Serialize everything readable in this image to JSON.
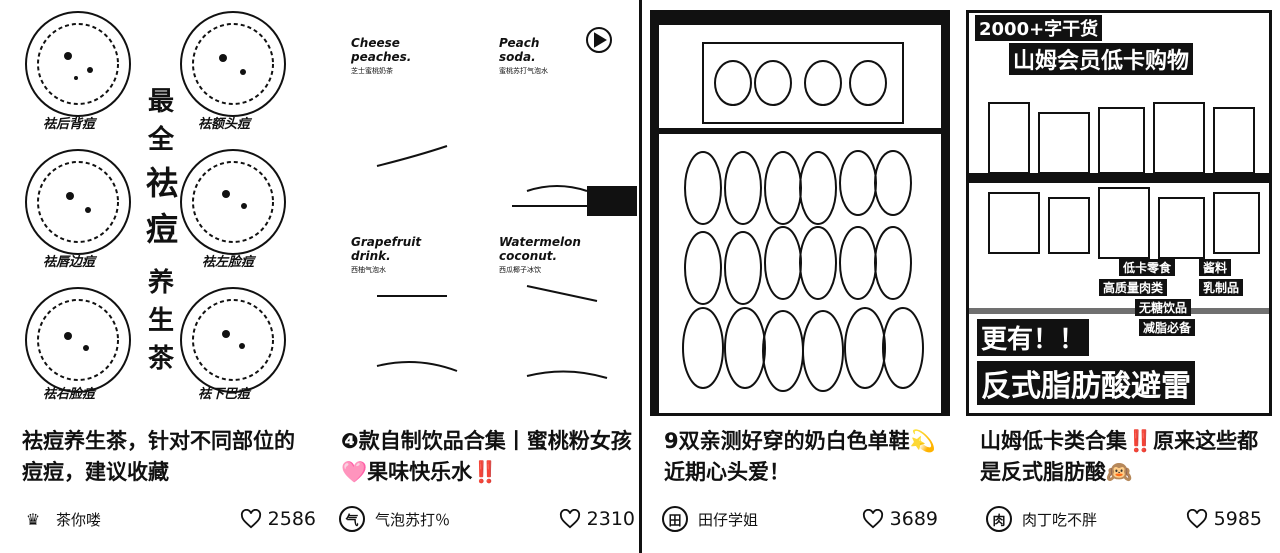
{
  "cards": [
    {
      "title": "祛痘养生茶，针对不同部位的痘痘，建议收藏",
      "author": "茶你喽",
      "likes": "2586",
      "image": {
        "vertical_text": [
          "最",
          "全",
          "祛",
          "痘",
          "养",
          "生",
          "茶"
        ],
        "labels": [
          "祛后背痘",
          "祛额头痘",
          "祛唇边痘",
          "祛左脸痘",
          "祛右脸痘",
          "祛下巴痘"
        ]
      }
    },
    {
      "title": "❹款自制饮品合集丨蜜桃粉女孩🩷果味快乐水‼️",
      "author": "气泡苏打％",
      "likes": "2310",
      "image": {
        "drinks": [
          {
            "name": "Cheese\npeaches.",
            "sub": "芝士蜜桃奶茶"
          },
          {
            "name": "Peach\nsoda.",
            "sub": "蜜桃苏打气泡水"
          },
          {
            "name": "Grapefruit\ndrink.",
            "sub": "西柚气泡水"
          },
          {
            "name": "Watermelon\ncoconut.",
            "sub": "西瓜椰子冰饮"
          }
        ]
      }
    },
    {
      "title": "9双亲测好穿的奶白色单鞋💫近期心头爱！",
      "author": "田仔学姐",
      "likes": "3689",
      "image": {}
    },
    {
      "title": "山姆低卡类合集‼️原来这些都是反式脂肪酸🙉",
      "author": "肉丁吃不胖",
      "likes": "5985",
      "image": {
        "top_banner": "2000+字干货",
        "headline": "山姆会员低卡购物",
        "tags": [
          "低卡零食",
          "酱料",
          "高质量肉类",
          "乳制品",
          "无糖饮品",
          "减脂必备"
        ],
        "bottom_top": "更有！！",
        "bottom_main": "反式脂肪酸避雷"
      }
    }
  ]
}
